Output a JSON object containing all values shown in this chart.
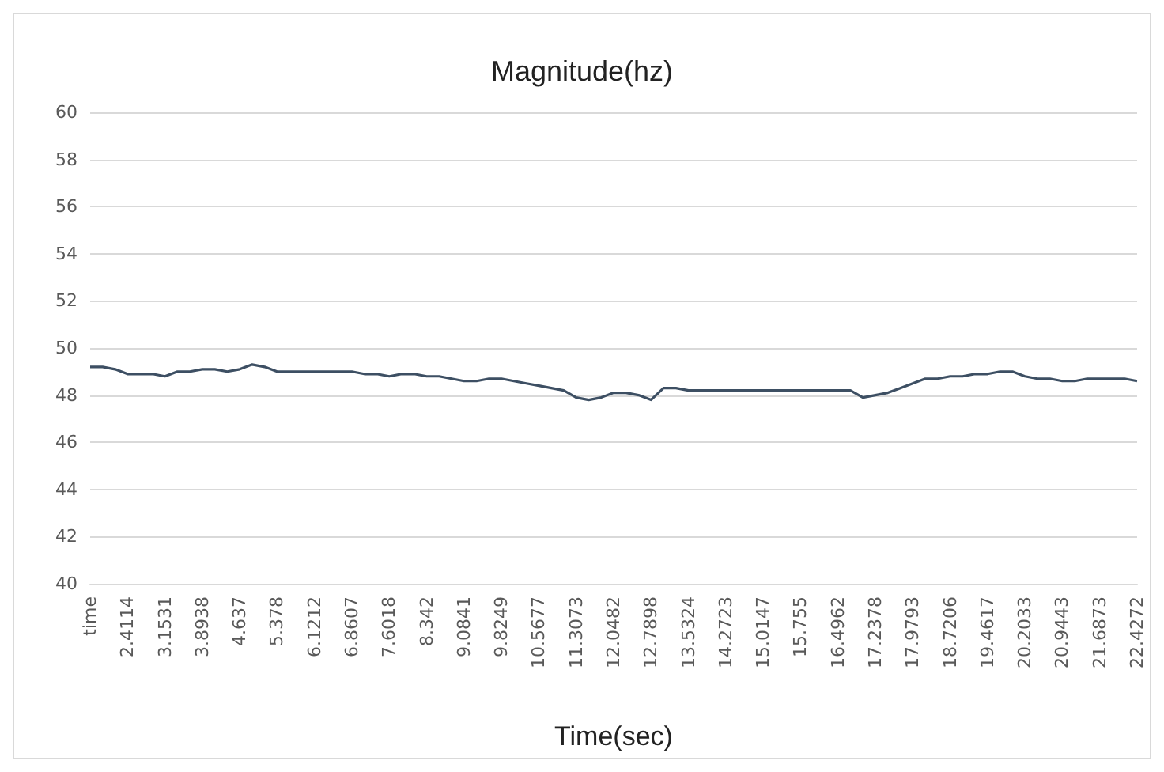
{
  "chart_data": {
    "type": "line",
    "title": "Magnitude(hz)",
    "xlabel": "Time(sec)",
    "categories": [
      "time",
      null,
      null,
      "2.4114",
      null,
      null,
      "3.1531",
      null,
      null,
      "3.8938",
      null,
      null,
      "4.637",
      null,
      null,
      "5.378",
      null,
      null,
      "6.1212",
      null,
      null,
      "6.8607",
      null,
      null,
      "7.6018",
      null,
      null,
      "8.342",
      null,
      null,
      "9.0841",
      null,
      null,
      "9.8249",
      null,
      null,
      "10.5677",
      null,
      null,
      "11.3073",
      null,
      null,
      "12.0482",
      null,
      null,
      "12.7898",
      null,
      null,
      "13.5324",
      null,
      null,
      "14.2723",
      null,
      null,
      "15.0147",
      null,
      null,
      "15.755",
      null,
      null,
      "16.4962",
      null,
      null,
      "17.2378",
      null,
      null,
      "17.9793",
      null,
      null,
      "18.7206",
      null,
      null,
      "19.4617",
      null,
      null,
      "20.2033",
      null,
      null,
      "20.9443",
      null,
      null,
      "21.6873",
      null,
      null,
      "22.4272"
    ],
    "series": [
      {
        "color": "#3d4f63",
        "values": [
          49.2,
          49.2,
          49.1,
          48.9,
          48.9,
          48.9,
          48.8,
          49.0,
          49.0,
          49.1,
          49.1,
          49.0,
          49.1,
          49.3,
          49.2,
          49.0,
          49.0,
          49.0,
          49.0,
          49.0,
          49.0,
          49.0,
          48.9,
          48.9,
          48.8,
          48.9,
          48.9,
          48.8,
          48.8,
          48.7,
          48.6,
          48.6,
          48.7,
          48.7,
          48.6,
          48.5,
          48.4,
          48.3,
          48.2,
          47.9,
          47.8,
          47.9,
          48.1,
          48.1,
          48.0,
          47.8,
          48.3,
          48.3,
          48.2,
          48.2,
          48.2,
          48.2,
          48.2,
          48.2,
          48.2,
          48.2,
          48.2,
          48.2,
          48.2,
          48.2,
          48.2,
          48.2,
          47.9,
          48.0,
          48.1,
          48.3,
          48.5,
          48.7,
          48.7,
          48.8,
          48.8,
          48.9,
          48.9,
          49.0,
          49.0,
          48.8,
          48.7,
          48.7,
          48.6,
          48.6,
          48.7,
          48.7,
          48.7,
          48.7,
          48.6
        ]
      }
    ],
    "ylim": [
      40,
      60
    ],
    "yticks": [
      40,
      42,
      44,
      46,
      48,
      50,
      52,
      54,
      56,
      58,
      60
    ],
    "grid": "y",
    "marker": "none",
    "line_style": "solid"
  }
}
